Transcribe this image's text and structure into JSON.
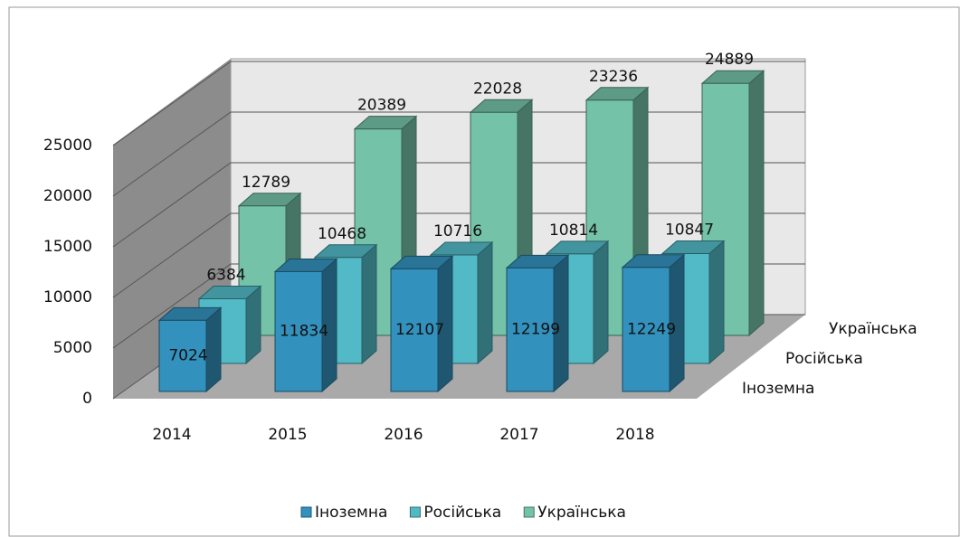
{
  "chart_data": {
    "type": "bar3d",
    "categories": [
      "2014",
      "2015",
      "2016",
      "2017",
      "2018"
    ],
    "series": [
      {
        "name": "Іноземна",
        "color": "#3391bd",
        "values": [
          7024,
          11834,
          12107,
          12199,
          12249
        ]
      },
      {
        "name": "Російська",
        "color": "#52bac6",
        "values": [
          6384,
          10468,
          10716,
          10814,
          10847
        ]
      },
      {
        "name": "Українська",
        "color": "#74c2a8",
        "values": [
          12789,
          20389,
          22028,
          23236,
          24889
        ]
      }
    ],
    "ylim": [
      0,
      25000
    ],
    "yticks": [
      0,
      5000,
      10000,
      15000,
      20000,
      25000
    ],
    "grid": true,
    "legend": "bottom"
  }
}
